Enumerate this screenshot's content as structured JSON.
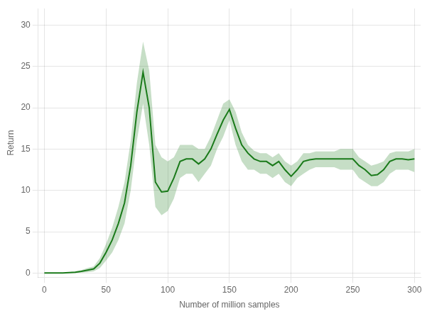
{
  "chart_data": {
    "type": "line",
    "xlabel": "Number of million samples",
    "ylabel": "Return",
    "xlim": [
      -5,
      305
    ],
    "ylim": [
      -0.5,
      32
    ],
    "xticks": [
      0,
      50,
      100,
      150,
      200,
      250,
      300
    ],
    "yticks": [
      0,
      5,
      10,
      15,
      20,
      25,
      30
    ],
    "grid": true,
    "color": "#1a7a1a",
    "x": [
      0,
      5,
      10,
      15,
      20,
      25,
      30,
      35,
      40,
      45,
      50,
      55,
      60,
      65,
      70,
      75,
      80,
      85,
      90,
      95,
      100,
      105,
      110,
      115,
      120,
      125,
      130,
      135,
      140,
      145,
      150,
      155,
      160,
      165,
      170,
      175,
      180,
      185,
      190,
      195,
      200,
      205,
      210,
      215,
      220,
      225,
      230,
      235,
      240,
      245,
      250,
      255,
      260,
      265,
      270,
      275,
      280,
      285,
      290,
      295,
      300
    ],
    "values": [
      0.0,
      0.0,
      0.0,
      0.0,
      0.05,
      0.1,
      0.2,
      0.35,
      0.5,
      1.2,
      2.5,
      4.0,
      6.0,
      8.5,
      13.0,
      19.5,
      24.3,
      20.0,
      11.0,
      9.8,
      9.9,
      11.5,
      13.5,
      13.8,
      13.8,
      13.2,
      13.8,
      15.0,
      16.8,
      18.5,
      19.8,
      17.5,
      15.5,
      14.5,
      13.8,
      13.5,
      13.5,
      13.0,
      13.5,
      12.5,
      11.7,
      12.5,
      13.5,
      13.7,
      13.8,
      13.8,
      13.8,
      13.8,
      13.8,
      13.8,
      13.8,
      13.0,
      12.5,
      11.8,
      11.9,
      12.5,
      13.5,
      13.8,
      13.8,
      13.7,
      13.8
    ],
    "upper": [
      0.0,
      0.0,
      0.0,
      0.0,
      0.1,
      0.2,
      0.35,
      0.6,
      0.8,
      1.8,
      3.5,
      5.5,
      8.0,
      11.0,
      16.0,
      23.0,
      28.0,
      24.5,
      15.5,
      14.0,
      13.5,
      14.0,
      15.5,
      15.5,
      15.5,
      15.0,
      15.0,
      16.5,
      18.5,
      20.5,
      21.0,
      19.5,
      17.0,
      15.5,
      14.8,
      14.5,
      14.5,
      14.0,
      14.5,
      13.5,
      13.0,
      13.5,
      14.5,
      14.5,
      14.7,
      14.7,
      14.7,
      14.7,
      15.0,
      15.0,
      15.0,
      14.0,
      13.5,
      13.0,
      13.2,
      13.5,
      14.5,
      14.7,
      14.7,
      14.7,
      15.0
    ],
    "lower": [
      0.0,
      0.0,
      0.0,
      0.0,
      0.0,
      0.0,
      0.05,
      0.1,
      0.2,
      0.6,
      1.5,
      2.5,
      4.0,
      6.0,
      10.0,
      16.0,
      20.5,
      15.5,
      8.0,
      7.0,
      7.5,
      9.0,
      11.5,
      12.0,
      12.0,
      11.0,
      12.0,
      13.0,
      15.0,
      16.5,
      18.5,
      15.5,
      13.5,
      12.5,
      12.5,
      12.0,
      12.0,
      11.5,
      12.0,
      11.0,
      10.5,
      11.5,
      12.0,
      12.5,
      12.8,
      12.8,
      12.8,
      12.8,
      12.5,
      12.5,
      12.5,
      11.5,
      11.0,
      10.5,
      10.5,
      11.0,
      12.0,
      12.5,
      12.5,
      12.5,
      12.2
    ]
  }
}
